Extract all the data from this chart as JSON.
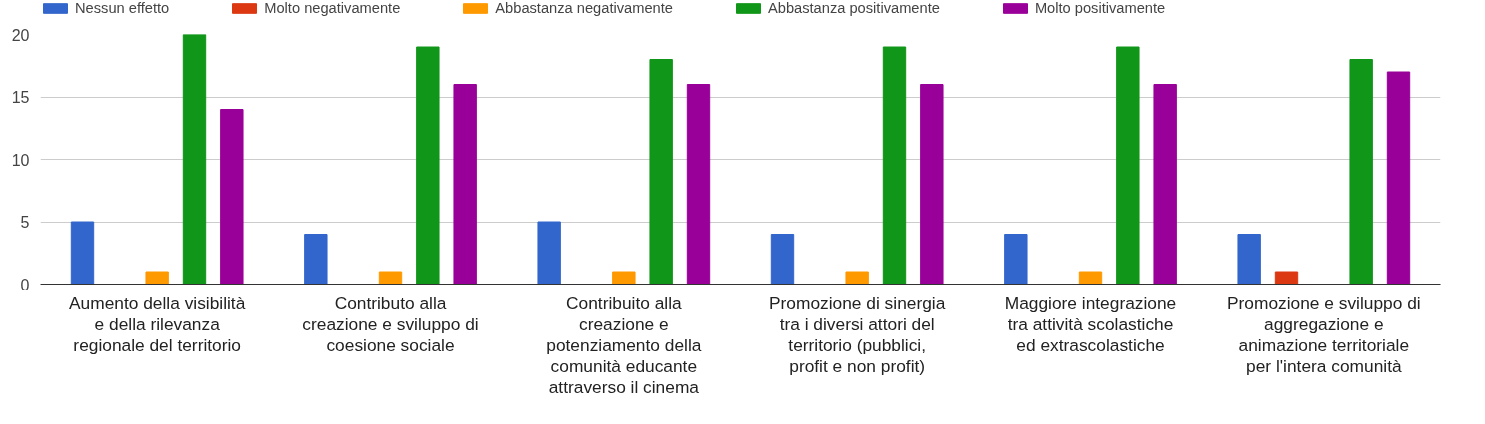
{
  "chart_data": {
    "type": "bar",
    "categories": [
      "Aumento della visibilità e della rilevanza regionale del territorio",
      "Contributo alla creazione e sviluppo di coesione sociale",
      "Contribuito alla creazione e potenziamento della comunità educante attraverso il cinema",
      "Promozione di sinergia tra i diversi attori del territorio (pubblici, profit e non profit)",
      "Maggiore integrazione tra attività scolastiche ed extrascolastiche",
      "Promozione e sviluppo di aggregazione e animazione territoriale per l'intera comunità"
    ],
    "series": [
      {
        "name": "Nessun effetto",
        "color": "#3366cc",
        "values": [
          5,
          4,
          5,
          4,
          4,
          4
        ]
      },
      {
        "name": "Molto negativamente",
        "color": "#dc3912",
        "values": [
          0,
          0,
          0,
          0,
          0,
          1
        ]
      },
      {
        "name": "Abbastanza negativamente",
        "color": "#ff9900",
        "values": [
          1,
          1,
          1,
          1,
          1,
          0
        ]
      },
      {
        "name": "Abbastanza positivamente",
        "color": "#109618",
        "values": [
          20,
          19,
          18,
          19,
          19,
          18
        ]
      },
      {
        "name": "Molto positivamente",
        "color": "#990099",
        "values": [
          14,
          16,
          16,
          16,
          16,
          17
        ]
      }
    ],
    "ylim": [
      0,
      20
    ],
    "yticks": [
      0,
      5,
      10,
      15,
      20
    ],
    "grid": "y",
    "legend": "top"
  }
}
